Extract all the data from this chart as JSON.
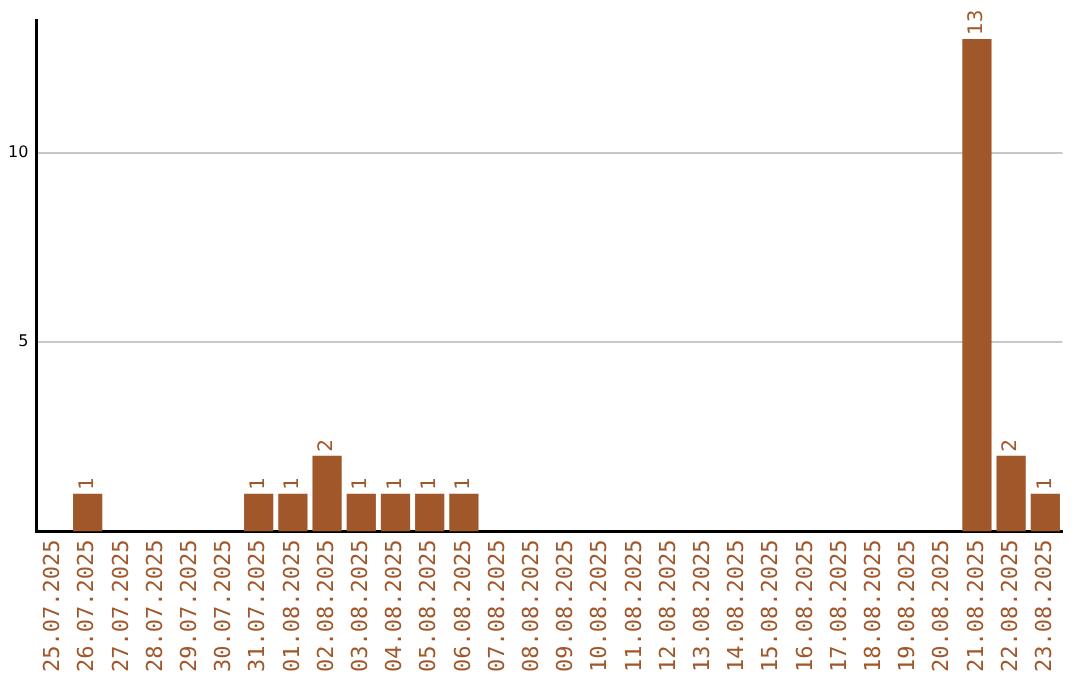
{
  "chart_data": {
    "type": "bar",
    "categories": [
      "25.07.2025",
      "26.07.2025",
      "27.07.2025",
      "28.07.2025",
      "29.07.2025",
      "30.07.2025",
      "31.07.2025",
      "01.08.2025",
      "02.08.2025",
      "03.08.2025",
      "04.08.2025",
      "05.08.2025",
      "06.08.2025",
      "07.08.2025",
      "08.08.2025",
      "09.08.2025",
      "10.08.2025",
      "11.08.2025",
      "12.08.2025",
      "13.08.2025",
      "14.08.2025",
      "15.08.2025",
      "16.08.2025",
      "17.08.2025",
      "18.08.2025",
      "19.08.2025",
      "20.08.2025",
      "21.08.2025",
      "22.08.2025",
      "23.08.2025"
    ],
    "values": [
      0,
      1,
      0,
      0,
      0,
      0,
      1,
      1,
      2,
      1,
      1,
      1,
      1,
      0,
      0,
      0,
      0,
      0,
      0,
      0,
      0,
      0,
      0,
      0,
      0,
      0,
      0,
      13,
      2,
      1
    ],
    "value_labels": [
      null,
      "1",
      null,
      null,
      null,
      null,
      "1",
      "1",
      "2",
      "1",
      "1",
      "1",
      "1",
      null,
      null,
      null,
      null,
      null,
      null,
      null,
      null,
      null,
      null,
      null,
      null,
      null,
      null,
      "13",
      "2",
      "1"
    ],
    "color": "#a0572a",
    "ylim": [
      0,
      13.5
    ],
    "yticks": [
      5,
      10
    ],
    "grid": "y",
    "legend": false
  }
}
